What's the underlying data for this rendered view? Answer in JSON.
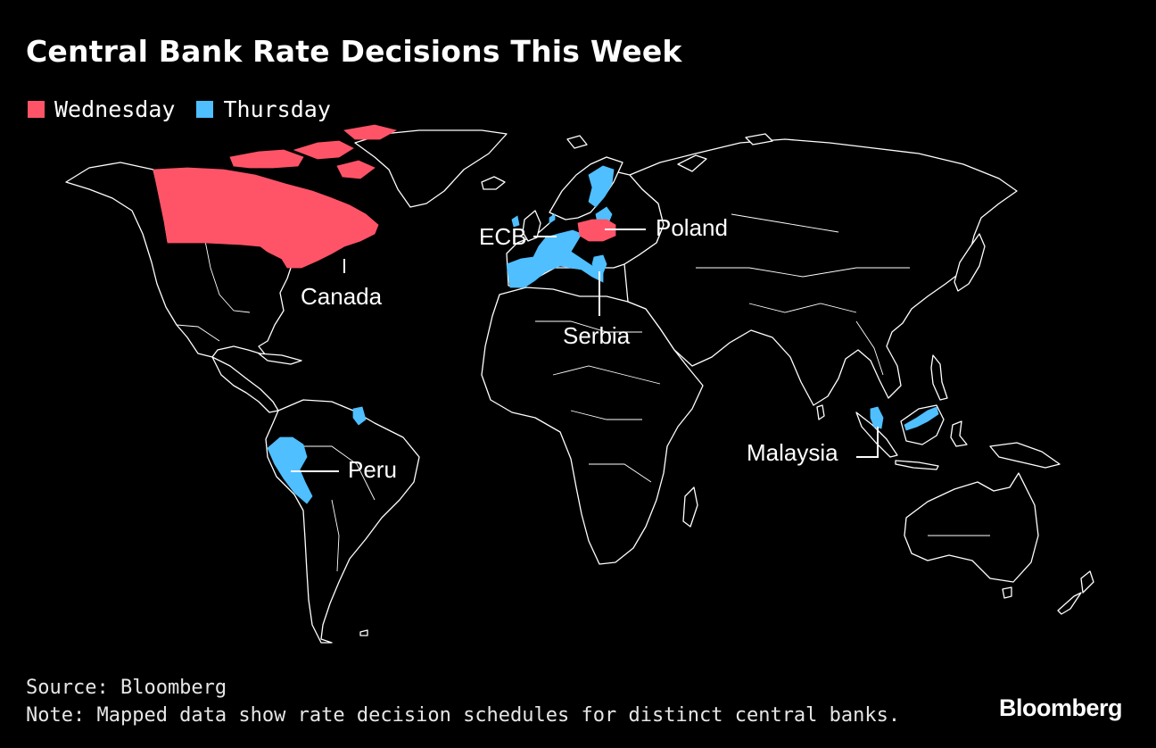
{
  "title": "Central Bank Rate Decisions This Week",
  "legend": [
    {
      "label": "Wednesday",
      "color": "#ff5468"
    },
    {
      "label": "Thursday",
      "color": "#4fbfff"
    }
  ],
  "map": {
    "highlighted_regions": [
      {
        "name": "Canada",
        "day": "Wednesday",
        "color": "#ff5468",
        "shapes": "canada"
      },
      {
        "name": "Poland",
        "day": "Wednesday",
        "color": "#ff5468",
        "shapes": "poland"
      },
      {
        "name": "ECB",
        "day": "Thursday",
        "color": "#4fbfff",
        "shapes": "euro-area"
      },
      {
        "name": "Serbia",
        "day": "Thursday",
        "color": "#4fbfff",
        "shapes": "serbia"
      },
      {
        "name": "Peru",
        "day": "Thursday",
        "color": "#4fbfff",
        "shapes": "peru"
      },
      {
        "name": "Malaysia",
        "day": "Thursday",
        "color": "#4fbfff",
        "shapes": "malaysia"
      }
    ],
    "callouts": {
      "canada": "Canada",
      "ecb": "ECB",
      "poland": "Poland",
      "serbia": "Serbia",
      "peru": "Peru",
      "malaysia": "Malaysia"
    }
  },
  "footer": {
    "source": "Source: Bloomberg",
    "note": "Note: Mapped data show rate decision schedules for distinct central banks."
  },
  "brand": "Bloomberg"
}
